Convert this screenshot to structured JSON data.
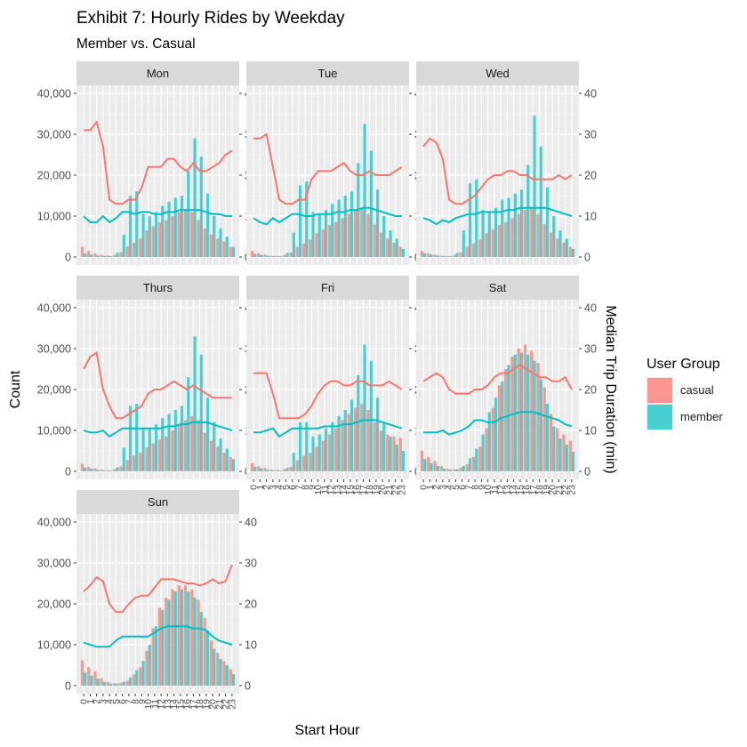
{
  "chart_data": {
    "type": "bar",
    "title": "Exhibit 7: Hourly Rides by Weekday",
    "subtitle": "Member vs. Casual",
    "xlabel": "Start Hour",
    "ylabel": "Count",
    "y2label": "Median Trip Duration (min)",
    "ylim": [
      0,
      40000
    ],
    "y2lim": [
      0,
      40
    ],
    "yticks": [
      0,
      10000,
      20000,
      30000,
      40000
    ],
    "ytick_labels": [
      "0",
      "10,000",
      "20,000",
      "30,000",
      "40,000"
    ],
    "y2ticks": [
      0,
      10,
      20,
      30,
      40
    ],
    "hours": [
      0,
      1,
      2,
      3,
      4,
      5,
      6,
      7,
      8,
      9,
      10,
      11,
      12,
      13,
      14,
      15,
      16,
      17,
      18,
      19,
      20,
      21,
      22,
      23
    ],
    "legend": {
      "title": "User Group",
      "placement": "right",
      "entries": [
        {
          "name": "casual",
          "bar_color": "#F8766D",
          "bar_fill": "#F8968F",
          "line_color": "#F8766D"
        },
        {
          "name": "member",
          "bar_color": "#00BFC4",
          "bar_fill": "#47CFD1",
          "line_color": "#00BFC4"
        }
      ]
    },
    "grid": true,
    "panel_background": "#EBEBEB",
    "strip_background": "#D9D9D9",
    "panels": [
      {
        "day": "Mon",
        "casual_count": [
          2500,
          1500,
          900,
          500,
          350,
          500,
          1200,
          2600,
          3500,
          4500,
          6500,
          7500,
          8500,
          9000,
          10000,
          11000,
          11500,
          11000,
          9000,
          7000,
          5500,
          4500,
          3800,
          2500
        ],
        "member_count": [
          900,
          600,
          350,
          250,
          200,
          1000,
          5500,
          15000,
          16000,
          10500,
          10000,
          11000,
          12500,
          13500,
          14500,
          15000,
          21000,
          29000,
          24500,
          15500,
          10000,
          7000,
          5000,
          2500
        ],
        "casual_duration": [
          31,
          31,
          33,
          27,
          14,
          13,
          13,
          14,
          14,
          17,
          22,
          22,
          22,
          24,
          24,
          22,
          21,
          23,
          21,
          21,
          22,
          23,
          25,
          26
        ],
        "member_duration": [
          10,
          8.5,
          8.5,
          10,
          8.5,
          9.5,
          11,
          11,
          10.5,
          11,
          11,
          10.5,
          10.5,
          11,
          11,
          11.5,
          11.5,
          11.5,
          11.5,
          11,
          10.5,
          10.5,
          10,
          10
        ]
      },
      {
        "day": "Tue",
        "casual_count": [
          1500,
          900,
          600,
          300,
          250,
          450,
          1100,
          2500,
          3300,
          4300,
          5800,
          6800,
          7800,
          8500,
          9500,
          10500,
          11500,
          12000,
          10500,
          8000,
          6000,
          4500,
          3500,
          2500
        ],
        "member_count": [
          800,
          500,
          300,
          200,
          200,
          1000,
          6000,
          17500,
          18500,
          11000,
          10500,
          11500,
          13000,
          14000,
          15000,
          16000,
          23000,
          32500,
          26000,
          16500,
          10000,
          6500,
          4500,
          2000
        ],
        "casual_duration": [
          29,
          29,
          30,
          22,
          14,
          13,
          13,
          14,
          14,
          19,
          21,
          21,
          21,
          22,
          23,
          21,
          20,
          20,
          21,
          20,
          20,
          20,
          21,
          22
        ],
        "member_duration": [
          9.5,
          8.5,
          8,
          9.5,
          8.5,
          9.5,
          10.5,
          10.5,
          10,
          10,
          10.5,
          10.5,
          10.5,
          11,
          11,
          11.5,
          11.5,
          12,
          12,
          11.5,
          11,
          10.5,
          10,
          10
        ]
      },
      {
        "day": "Wed",
        "casual_count": [
          1500,
          900,
          600,
          300,
          250,
          450,
          1100,
          2500,
          3300,
          4300,
          5800,
          6800,
          7800,
          8500,
          9500,
          10500,
          11500,
          12000,
          10500,
          8000,
          6000,
          4500,
          3500,
          2500
        ],
        "member_count": [
          900,
          600,
          350,
          250,
          200,
          1000,
          6500,
          18000,
          19000,
          11500,
          11000,
          12000,
          14000,
          14500,
          15500,
          16500,
          22500,
          34500,
          27000,
          17000,
          10000,
          6500,
          4500,
          2000
        ],
        "casual_duration": [
          27,
          29,
          28,
          24,
          14,
          13,
          13,
          14,
          15,
          17,
          19,
          20,
          20,
          21,
          21,
          20,
          20,
          19,
          19,
          19,
          19,
          20,
          19,
          20
        ],
        "member_duration": [
          9.5,
          9,
          8,
          9,
          8.5,
          9.5,
          10,
          10.5,
          10.5,
          11,
          11,
          11,
          11,
          11.5,
          11.5,
          12,
          12,
          12,
          12,
          12,
          11.5,
          11,
          10.5,
          10
        ]
      },
      {
        "day": "Thurs",
        "casual_count": [
          1800,
          1100,
          700,
          400,
          300,
          500,
          1200,
          2800,
          3800,
          4500,
          5800,
          6800,
          7800,
          8500,
          10000,
          11500,
          12500,
          13500,
          12500,
          9500,
          7500,
          6000,
          4500,
          3500
        ],
        "member_count": [
          900,
          600,
          350,
          250,
          200,
          1000,
          5800,
          16000,
          16500,
          10500,
          10500,
          11500,
          13000,
          14000,
          15000,
          16000,
          23000,
          33000,
          28500,
          18000,
          12000,
          8000,
          5500,
          3000
        ],
        "casual_duration": [
          25,
          28,
          29,
          20,
          16,
          13,
          13,
          14,
          15,
          16,
          19,
          20,
          20,
          21,
          22,
          21,
          20,
          21,
          20,
          19,
          18,
          18,
          18,
          18
        ],
        "member_duration": [
          10,
          9.5,
          9.5,
          10,
          8.5,
          9.5,
          10.5,
          10.5,
          10.5,
          10.5,
          10.5,
          10.5,
          10.5,
          11,
          11,
          11.5,
          11.5,
          12,
          12,
          12,
          11.5,
          11,
          10.5,
          10
        ]
      },
      {
        "day": "Fri",
        "casual_count": [
          2000,
          1200,
          800,
          450,
          350,
          500,
          1100,
          2700,
          3800,
          4500,
          6000,
          7500,
          9000,
          10500,
          12500,
          14000,
          15500,
          16500,
          15000,
          12000,
          10000,
          9000,
          8500,
          8200
        ],
        "member_count": [
          1100,
          700,
          400,
          250,
          200,
          800,
          4500,
          12000,
          12000,
          8500,
          9000,
          10500,
          12000,
          13500,
          15000,
          17500,
          23500,
          31000,
          27000,
          18000,
          12000,
          8500,
          6500,
          5000
        ],
        "casual_duration": [
          24,
          24,
          24,
          19,
          13,
          13,
          13,
          13,
          14,
          16,
          19,
          21,
          22,
          22,
          21,
          21,
          22,
          22,
          21,
          21,
          21,
          22,
          21,
          20
        ],
        "member_duration": [
          9.5,
          9.5,
          10,
          10.5,
          8.5,
          9.5,
          10.5,
          10.5,
          10.5,
          10.5,
          10.5,
          11,
          11,
          11,
          11.5,
          11.5,
          12,
          12.5,
          12.5,
          12.5,
          12,
          11.5,
          11,
          10.5
        ]
      },
      {
        "day": "Sat",
        "casual_count": [
          5000,
          3500,
          2500,
          1300,
          600,
          500,
          900,
          1700,
          3500,
          6000,
          10500,
          15500,
          21000,
          25000,
          28000,
          30000,
          31000,
          29500,
          26500,
          20500,
          14000,
          10500,
          9000,
          7500
        ],
        "member_count": [
          3000,
          2000,
          1300,
          700,
          400,
          500,
          1300,
          3200,
          5500,
          9000,
          14500,
          18000,
          22000,
          26000,
          28500,
          29000,
          28500,
          27000,
          22500,
          16500,
          11000,
          8000,
          6500,
          4800
        ],
        "casual_duration": [
          22,
          23,
          24,
          23,
          20,
          19,
          19,
          19,
          20,
          20,
          21,
          23,
          24,
          24,
          25,
          26,
          25,
          24,
          23,
          23,
          22,
          22,
          23,
          20
        ],
        "member_duration": [
          9.5,
          9.5,
          9.5,
          10,
          9,
          9.5,
          10,
          11,
          12.5,
          12.5,
          12,
          12,
          13,
          13.5,
          14,
          14.5,
          14.5,
          14.5,
          14,
          13.5,
          13,
          12.5,
          11.5,
          11
        ]
      },
      {
        "day": "Sun",
        "casual_count": [
          6200,
          4500,
          3500,
          1800,
          900,
          600,
          700,
          1200,
          2700,
          4500,
          8500,
          14000,
          19000,
          21500,
          23500,
          24500,
          24500,
          23500,
          21000,
          16500,
          11000,
          8000,
          6000,
          4000
        ],
        "member_count": [
          3300,
          2400,
          1700,
          900,
          500,
          500,
          900,
          2000,
          3800,
          6000,
          10000,
          14500,
          18500,
          21000,
          23000,
          23500,
          23000,
          21500,
          18000,
          13500,
          9000,
          6500,
          5000,
          2800
        ],
        "casual_duration": [
          23,
          24.5,
          26.5,
          25.5,
          20,
          18,
          18,
          20,
          21.5,
          22,
          22,
          24,
          26,
          26,
          26,
          25.5,
          25,
          25,
          24.5,
          25,
          26,
          25,
          25.5,
          29.5
        ],
        "member_duration": [
          10.5,
          10,
          9.5,
          9.5,
          9.5,
          11,
          12,
          12,
          12,
          12,
          12,
          13,
          14,
          14.5,
          14.5,
          14.5,
          14.5,
          14,
          14,
          13.5,
          12,
          11,
          10.5,
          10
        ]
      }
    ]
  }
}
